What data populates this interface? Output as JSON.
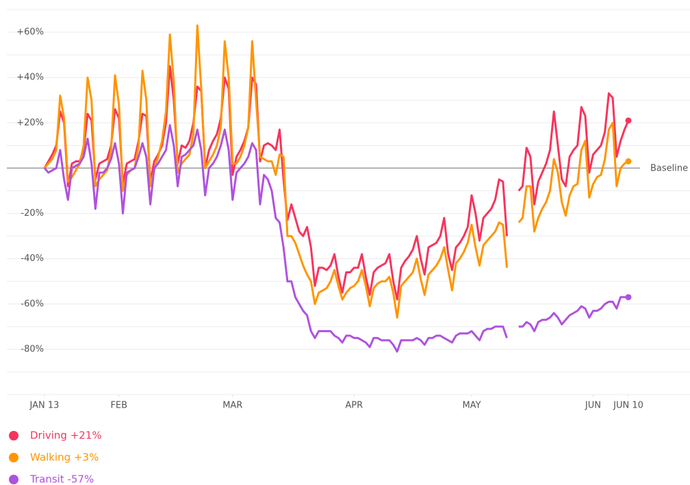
{
  "chart_data": {
    "type": "line",
    "annotation": "Baseline",
    "x": [
      "01-13",
      "01-14",
      "01-15",
      "01-16",
      "01-17",
      "01-18",
      "01-19",
      "01-20",
      "01-21",
      "01-22",
      "01-23",
      "01-24",
      "01-25",
      "01-26",
      "01-27",
      "01-28",
      "01-29",
      "01-30",
      "01-31",
      "02-01",
      "02-02",
      "02-03",
      "02-04",
      "02-05",
      "02-06",
      "02-07",
      "02-08",
      "02-09",
      "02-10",
      "02-11",
      "02-12",
      "02-13",
      "02-14",
      "02-15",
      "02-16",
      "02-17",
      "02-18",
      "02-19",
      "02-20",
      "02-21",
      "02-22",
      "02-23",
      "02-24",
      "02-25",
      "02-26",
      "02-27",
      "02-28",
      "02-29",
      "03-01",
      "03-02",
      "03-03",
      "03-04",
      "03-05",
      "03-06",
      "03-07",
      "03-08",
      "03-09",
      "03-10",
      "03-11",
      "03-12",
      "03-13",
      "03-14",
      "03-15",
      "03-16",
      "03-17",
      "03-18",
      "03-19",
      "03-20",
      "03-21",
      "03-22",
      "03-23",
      "03-24",
      "03-25",
      "03-26",
      "03-27",
      "03-28",
      "03-29",
      "03-30",
      "03-31",
      "04-01",
      "04-02",
      "04-03",
      "04-04",
      "04-05",
      "04-06",
      "04-07",
      "04-08",
      "04-09",
      "04-10",
      "04-11",
      "04-12",
      "04-13",
      "04-14",
      "04-15",
      "04-16",
      "04-17",
      "04-18",
      "04-19",
      "04-20",
      "04-21",
      "04-22",
      "04-23",
      "04-24",
      "04-25",
      "04-26",
      "04-27",
      "04-28",
      "04-29",
      "04-30",
      "05-01",
      "05-02",
      "05-03",
      "05-04",
      "05-05",
      "05-06",
      "05-07",
      "05-08",
      "05-09",
      "05-10",
      "05-11",
      "05-12",
      "05-13",
      "05-14",
      "05-15",
      "05-16",
      "05-17",
      "05-18",
      "05-19",
      "05-20",
      "05-21",
      "05-22",
      "05-23",
      "05-24",
      "05-25",
      "05-26",
      "05-27",
      "05-28",
      "05-29",
      "05-30",
      "05-31",
      "06-01",
      "06-02",
      "06-03",
      "06-04",
      "06-05",
      "06-06",
      "06-07",
      "06-08",
      "06-09",
      "06-10"
    ],
    "series": [
      {
        "name": "Driving +21%",
        "color": "#f7345e",
        "values": [
          0,
          3,
          6,
          10,
          25,
          20,
          -8,
          2,
          3,
          3,
          8,
          24,
          21,
          -5,
          2,
          3,
          4,
          10,
          26,
          22,
          -7,
          2,
          3,
          4,
          12,
          24,
          23,
          -6,
          3,
          6,
          10,
          20,
          45,
          30,
          2,
          10,
          9,
          12,
          20,
          36,
          34,
          0,
          8,
          12,
          15,
          22,
          40,
          35,
          -3,
          5,
          8,
          12,
          18,
          40,
          37,
          3,
          10,
          11,
          10,
          8,
          17,
          -5,
          -23,
          -16,
          -22,
          -28,
          -30,
          -26,
          -35,
          -52,
          -44,
          -44,
          -45,
          -43,
          -38,
          -48,
          -55,
          -46,
          -46,
          -44,
          -44,
          -38,
          -48,
          -56,
          -46,
          -44,
          -43,
          -42,
          -38,
          -50,
          -58,
          -44,
          -41,
          -39,
          -36,
          -30,
          -40,
          -47,
          -35,
          -34,
          -33,
          -30,
          -22,
          -38,
          -45,
          -35,
          -33,
          -30,
          -26,
          -12,
          -20,
          -32,
          -22,
          -20,
          -18,
          -14,
          -5,
          -6,
          -30,
          null,
          null,
          -10,
          -8,
          9,
          5,
          -16,
          -6,
          -2,
          2,
          8,
          25,
          10,
          -5,
          -8,
          5,
          8,
          10,
          27,
          23,
          -2,
          6,
          8,
          10,
          16,
          33,
          31,
          5,
          12,
          17,
          21
        ]
      },
      {
        "name": "Walking +3%",
        "color": "#ff9500",
        "values": [
          0,
          2,
          4,
          8,
          32,
          22,
          -6,
          -4,
          -1,
          2,
          10,
          40,
          30,
          -8,
          -5,
          -3,
          -1,
          8,
          41,
          28,
          -10,
          -3,
          -1,
          0,
          10,
          43,
          30,
          -8,
          -1,
          5,
          12,
          25,
          59,
          38,
          -2,
          2,
          4,
          6,
          15,
          63,
          35,
          0,
          3,
          6,
          10,
          18,
          56,
          40,
          2,
          2,
          5,
          10,
          18,
          56,
          30,
          5,
          4,
          3,
          3,
          -3,
          6,
          5,
          -30,
          -30,
          -33,
          -38,
          -43,
          -47,
          -50,
          -60,
          -55,
          -54,
          -53,
          -50,
          -45,
          -52,
          -58,
          -55,
          -53,
          -52,
          -50,
          -45,
          -52,
          -61,
          -53,
          -51,
          -50,
          -50,
          -48,
          -55,
          -66,
          -52,
          -50,
          -48,
          -46,
          -40,
          -49,
          -56,
          -47,
          -45,
          -43,
          -40,
          -35,
          -45,
          -54,
          -42,
          -40,
          -37,
          -33,
          -25,
          -35,
          -43,
          -34,
          -32,
          -30,
          -28,
          -24,
          -25,
          -44,
          null,
          null,
          -24,
          -22,
          -8,
          -8,
          -28,
          -22,
          -18,
          -15,
          -10,
          4,
          -2,
          -15,
          -21,
          -12,
          -8,
          -7,
          8,
          12,
          -13,
          -7,
          -4,
          -3,
          4,
          17,
          20,
          -8,
          0,
          2,
          3
        ]
      },
      {
        "name": "Transit -57%",
        "color": "#af52de",
        "values": [
          0,
          -2,
          -1,
          0,
          8,
          -5,
          -14,
          0,
          1,
          2,
          5,
          13,
          2,
          -18,
          -2,
          -2,
          0,
          4,
          11,
          2,
          -20,
          -2,
          -1,
          0,
          5,
          11,
          5,
          -16,
          0,
          2,
          5,
          8,
          19,
          10,
          -8,
          5,
          6,
          8,
          10,
          17,
          8,
          -12,
          0,
          2,
          5,
          10,
          17,
          8,
          -14,
          -2,
          0,
          2,
          5,
          11,
          8,
          -16,
          -3,
          -5,
          -10,
          -22,
          -24,
          -35,
          -50,
          -50,
          -57,
          -60,
          -63,
          -65,
          -72,
          -75,
          -72,
          -72,
          -72,
          -72,
          -74,
          -75,
          -77,
          -74,
          -74,
          -75,
          -75,
          -76,
          -77,
          -79,
          -75,
          -75,
          -76,
          -76,
          -76,
          -78,
          -81,
          -76,
          -76,
          -76,
          -76,
          -75,
          -76,
          -78,
          -75,
          -75,
          -74,
          -74,
          -75,
          -76,
          -77,
          -74,
          -73,
          -73,
          -73,
          -72,
          -74,
          -76,
          -72,
          -71,
          -71,
          -70,
          -70,
          -70,
          -75,
          null,
          null,
          -70,
          -70,
          -68,
          -69,
          -72,
          -68,
          -67,
          -67,
          -66,
          -64,
          -66,
          -69,
          -67,
          -65,
          -64,
          -63,
          -61,
          -62,
          -66,
          -63,
          -63,
          -62,
          -60,
          -59,
          -59,
          -62,
          -57,
          -57,
          -57
        ]
      }
    ],
    "ylim": [
      -100,
      70
    ],
    "yticks": [
      {
        "value": 60,
        "label": "+60%"
      },
      {
        "value": 40,
        "label": "+40%"
      },
      {
        "value": 20,
        "label": "+20%"
      },
      {
        "value": -20,
        "label": "-20%"
      },
      {
        "value": -40,
        "label": "-40%"
      },
      {
        "value": -60,
        "label": "-60%"
      },
      {
        "value": -80,
        "label": "-80%"
      }
    ],
    "minor_yticks": [
      70,
      50,
      30,
      10,
      -10,
      -30,
      -50,
      -70,
      -90,
      -100
    ],
    "xticks": [
      {
        "value": "01-13",
        "label": "JAN 13"
      },
      {
        "value": "02-01",
        "label": "FEB"
      },
      {
        "value": "03-01",
        "label": "MAR"
      },
      {
        "value": "04-01",
        "label": "APR"
      },
      {
        "value": "05-01",
        "label": "MAY"
      },
      {
        "value": "06-01",
        "label": "JUN"
      },
      {
        "value": "06-10",
        "label": "JUN 10"
      }
    ],
    "grid": true
  }
}
